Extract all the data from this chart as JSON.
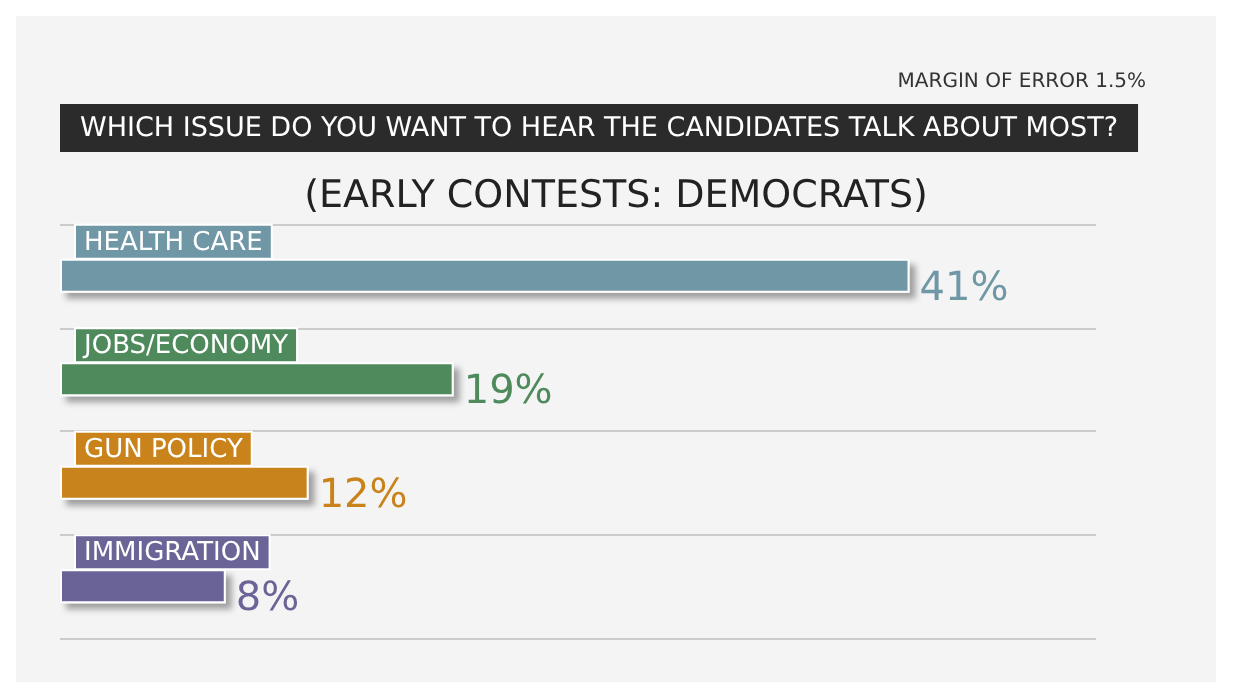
{
  "chart_data": {
    "type": "bar",
    "orientation": "horizontal",
    "title": "WHICH ISSUE DO YOU WANT TO HEAR THE CANDIDATES TALK ABOUT MOST?",
    "subtitle": "(EARLY CONTESTS: DEMOCRATS)",
    "annotations": [
      "MARGIN OF ERROR 1.5%"
    ],
    "categories": [
      "HEALTH CARE",
      "JOBS/ECONOMY",
      "GUN POLICY",
      "IMMIGRATION"
    ],
    "values": [
      41,
      19,
      12,
      8
    ],
    "colors": [
      "#6f97a5",
      "#4f8a5c",
      "#c9831a",
      "#6a6497"
    ],
    "value_labels": [
      "41%",
      "19%",
      "12%",
      "8%"
    ],
    "grid": "y"
  }
}
